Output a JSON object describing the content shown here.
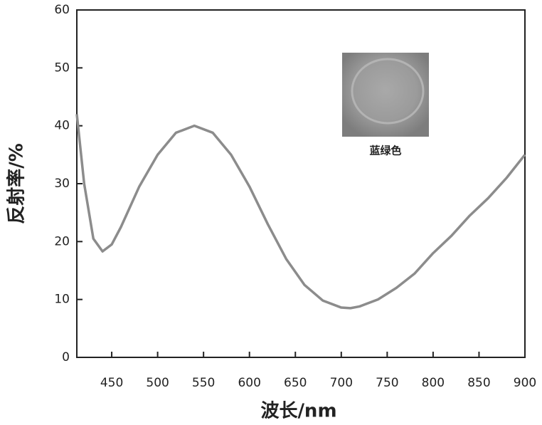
{
  "chart_data": {
    "type": "line",
    "x_label": "波长/nm",
    "y_label": "反射率/%",
    "annotation": "蓝绿色",
    "x": [
      412,
      420,
      430,
      440,
      450,
      460,
      480,
      500,
      520,
      540,
      560,
      580,
      600,
      620,
      640,
      660,
      680,
      700,
      710,
      720,
      740,
      760,
      780,
      800,
      820,
      840,
      860,
      880,
      900
    ],
    "series": [
      {
        "name": "反射率",
        "color": "#8c8c8c",
        "values": [
          42,
          30,
          20.5,
          18.3,
          19.5,
          22.5,
          29.5,
          35,
          38.8,
          40,
          38.8,
          35,
          29.5,
          23,
          17,
          12.5,
          9.8,
          8.6,
          8.5,
          8.8,
          10,
          12,
          14.5,
          18,
          21,
          24.5,
          27.5,
          31,
          35
        ]
      }
    ],
    "xlim": [
      412,
      900
    ],
    "ylim": [
      0,
      60
    ],
    "xticks": [
      450,
      500,
      550,
      600,
      650,
      700,
      750,
      800,
      850,
      900
    ],
    "yticks": [
      0,
      10,
      20,
      30,
      40,
      50,
      60
    ]
  }
}
